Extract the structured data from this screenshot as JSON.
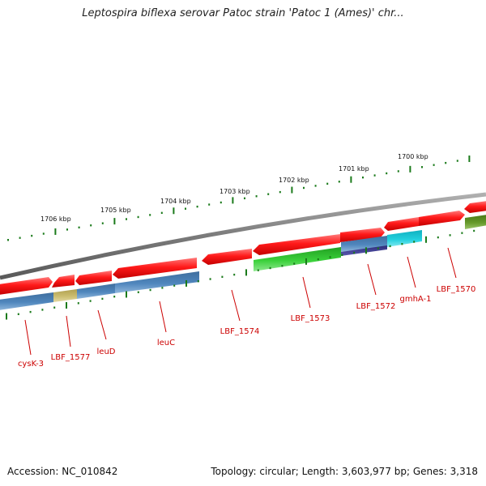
{
  "title": "Leptospira biflexa serovar Patoc strain 'Patoc 1 (Ames)' chr...",
  "footer": {
    "accession": "Accession: NC_010842",
    "summary": "Topology: circular; Length: 3,603,977 bp; Genes: 3,318"
  },
  "scale_labels": [
    "1706 kbp",
    "1705 kbp",
    "1704 kbp",
    "1703 kbp",
    "1702 kbp",
    "1701 kbp",
    "1700 kbp"
  ],
  "gene_labels": [
    "cysK-3",
    "LBF_1577",
    "leuD",
    "leuC",
    "LBF_1574",
    "LBF_1573",
    "LBF_1572",
    "gmhA-1",
    "LBF_1570"
  ],
  "colors": {
    "cds": "#ff0000",
    "backbone": "#808080",
    "tick": "#1a7a1a",
    "label": "#cc0000",
    "track_blue": "#4a7fb5",
    "track_green": "#2fc22f",
    "track_olive": "#c8b86a",
    "track_navy": "#3b3a8f",
    "track_cyan": "#1bc8d6",
    "track_darkgreen": "#5e9222"
  }
}
